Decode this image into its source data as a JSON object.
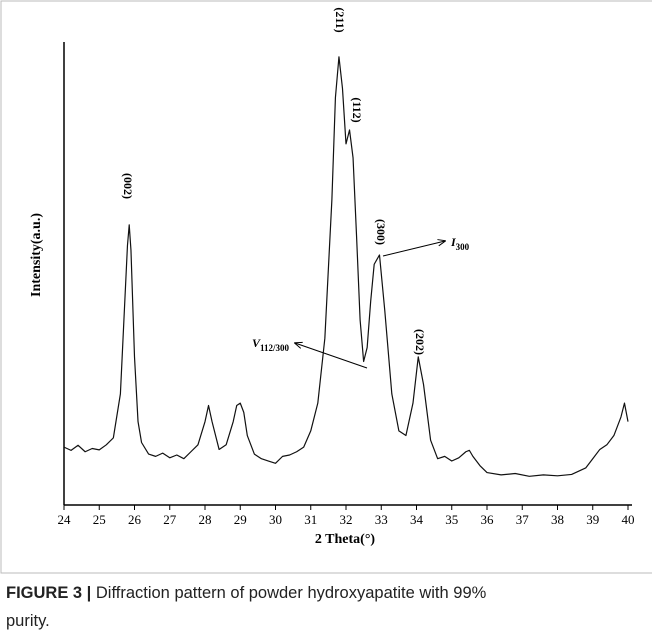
{
  "chart_data": {
    "type": "line",
    "xlabel": "2 Theta(°)",
    "ylabel": "Intensity(a.u.)",
    "x": [
      24.0,
      24.2,
      24.4,
      24.6,
      24.8,
      25.0,
      25.2,
      25.4,
      25.6,
      25.7,
      25.8,
      25.85,
      25.9,
      26.0,
      26.1,
      26.2,
      26.4,
      26.6,
      26.8,
      27.0,
      27.2,
      27.4,
      27.6,
      27.8,
      28.0,
      28.1,
      28.2,
      28.4,
      28.6,
      28.8,
      28.9,
      29.0,
      29.1,
      29.2,
      29.4,
      29.6,
      29.8,
      30.0,
      30.2,
      30.4,
      30.6,
      30.8,
      31.0,
      31.2,
      31.4,
      31.6,
      31.7,
      31.8,
      31.9,
      32.0,
      32.1,
      32.2,
      32.3,
      32.4,
      32.5,
      32.6,
      32.7,
      32.8,
      32.95,
      33.1,
      33.3,
      33.5,
      33.7,
      33.9,
      34.05,
      34.2,
      34.4,
      34.6,
      34.8,
      35.0,
      35.2,
      35.4,
      35.5,
      35.6,
      35.8,
      36.0,
      36.4,
      36.8,
      37.2,
      37.6,
      38.0,
      38.4,
      38.8,
      39.0,
      39.2,
      39.4,
      39.6,
      39.8,
      39.9,
      40.0
    ],
    "values": [
      12.5,
      11.8,
      12.9,
      11.5,
      12.2,
      11.9,
      13.0,
      14.5,
      24,
      40,
      56,
      60.5,
      55,
      32,
      18,
      13.5,
      11,
      10.5,
      11.2,
      10.2,
      10.8,
      10,
      11.5,
      13,
      18,
      21.5,
      18,
      12,
      13,
      18,
      21.5,
      22,
      20,
      15,
      11,
      10,
      9.5,
      9,
      10.5,
      10.8,
      11.5,
      12.5,
      16,
      22,
      36,
      66,
      88,
      96.8,
      90,
      78,
      81,
      75,
      58,
      40,
      31,
      34,
      44,
      52,
      54,
      42,
      24,
      16,
      15,
      22,
      32,
      26,
      14,
      10,
      10.5,
      9.5,
      10.2,
      11.5,
      11.8,
      10.5,
      8.5,
      7,
      6.5,
      6.8,
      6.2,
      6.5,
      6.3,
      6.6,
      8,
      10,
      12,
      13,
      15,
      19,
      22,
      18
    ],
    "color": "#111111",
    "xlim": [
      24,
      40
    ],
    "xticks": [
      24,
      25,
      26,
      27,
      28,
      29,
      30,
      31,
      32,
      33,
      34,
      35,
      36,
      37,
      38,
      39,
      40
    ],
    "ylim": [
      0,
      100
    ],
    "peak_labels": [
      "(002)",
      "(211)",
      "(112)",
      "(300)",
      "(202)"
    ],
    "i_label": {
      "main": "I",
      "sub": "300"
    },
    "v_label": {
      "main": "V",
      "sub": "112/300"
    },
    "caption": {
      "label": "FIGURE 3 |",
      "line1": " Diffraction pattern of powder hydroxyapatite with 99%",
      "line2": "purity."
    }
  }
}
